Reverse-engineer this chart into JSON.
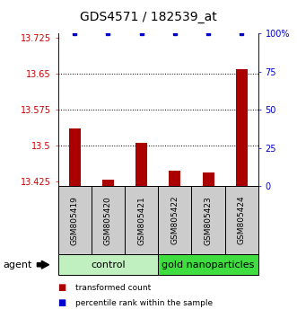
{
  "title": "GDS4571 / 182539_at",
  "samples": [
    "GSM805419",
    "GSM805420",
    "GSM805421",
    "GSM805422",
    "GSM805423",
    "GSM805424"
  ],
  "red_values": [
    13.535,
    13.428,
    13.505,
    13.448,
    13.443,
    13.66
  ],
  "blue_values": [
    100,
    100,
    100,
    100,
    100,
    100
  ],
  "ylim_left": [
    13.415,
    13.735
  ],
  "ylim_right": [
    0,
    100
  ],
  "yticks_left": [
    13.425,
    13.5,
    13.575,
    13.65,
    13.725
  ],
  "yticks_right": [
    0,
    25,
    50,
    75,
    100
  ],
  "ytick_labels_left": [
    "13.425",
    "13.5",
    "13.575",
    "13.65",
    "13.725"
  ],
  "ytick_labels_right": [
    "0",
    "25",
    "50",
    "75",
    "100%"
  ],
  "hlines": [
    13.5,
    13.575,
    13.65
  ],
  "groups": [
    {
      "label": "control",
      "indices": [
        0,
        1,
        2
      ],
      "color": "#c0f0c0"
    },
    {
      "label": "gold nanoparticles",
      "indices": [
        3,
        4,
        5
      ],
      "color": "#40dd40"
    }
  ],
  "agent_label": "agent",
  "bar_color_red": "#aa0000",
  "bar_color_blue": "#0000cc",
  "bar_width": 0.35,
  "sample_box_color": "#cccccc",
  "legend_red": "transformed count",
  "legend_blue": "percentile rank within the sample",
  "left_tick_color": "#cc0000",
  "right_tick_color": "#0000cc"
}
